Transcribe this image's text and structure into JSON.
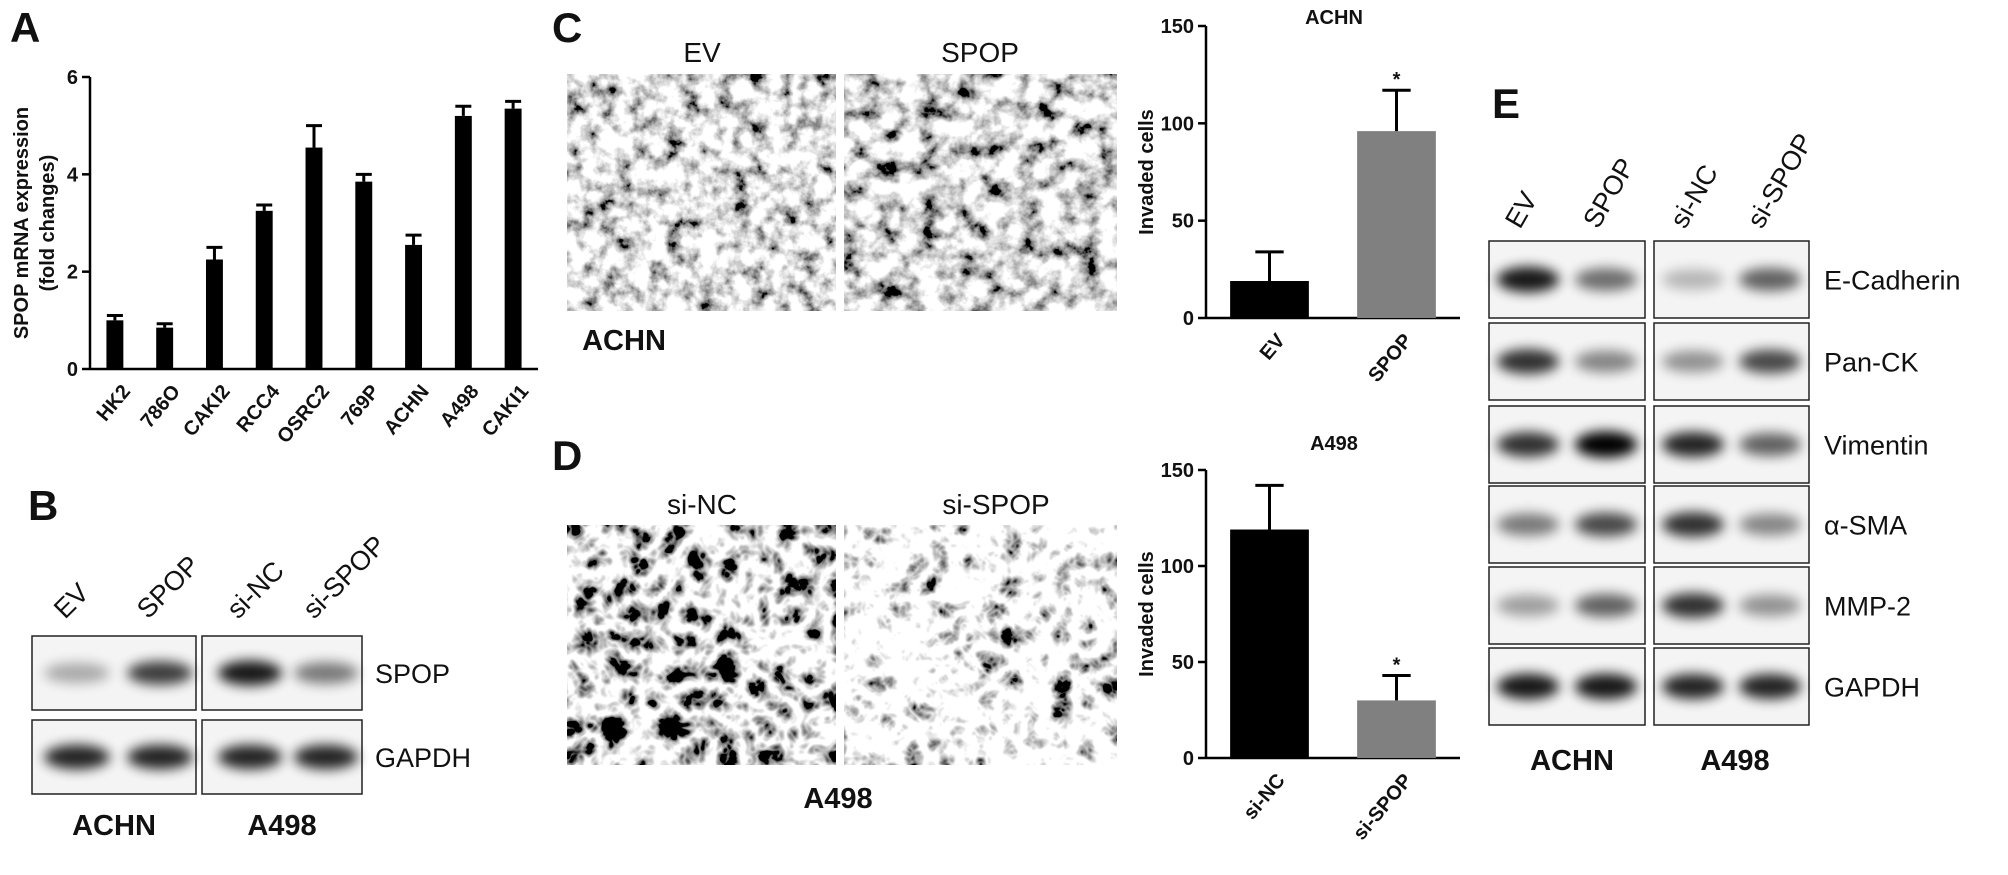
{
  "chart_data": [
    {
      "type": "bar",
      "ylabel": [
        "SPOP mRNA expression",
        "(fold changes)"
      ],
      "categories": [
        "HK2",
        "786O",
        "CAKI2",
        "RCC4",
        "OSRC2",
        "769P",
        "ACHN",
        "A498",
        "CAKI1"
      ],
      "values": [
        1.0,
        0.85,
        2.25,
        3.25,
        4.55,
        3.85,
        2.55,
        5.2,
        5.35
      ],
      "errors": [
        0.1,
        0.08,
        0.25,
        0.12,
        0.45,
        0.15,
        0.2,
        0.2,
        0.15
      ],
      "color": "#000000",
      "ylim": [
        0,
        6
      ],
      "yticks": [
        0,
        2,
        4,
        6
      ]
    },
    {
      "type": "bar",
      "title": "ACHN",
      "ylabel": [
        "Invaded cells"
      ],
      "categories": [
        "EV",
        "SPOP"
      ],
      "values": [
        19,
        96
      ],
      "errors": [
        15,
        21
      ],
      "significance": [
        null,
        "*"
      ],
      "colors": [
        "#000000",
        "#808080"
      ],
      "ylim": [
        0,
        150
      ],
      "yticks": [
        0,
        50,
        100,
        150
      ]
    },
    {
      "type": "bar",
      "title": "A498",
      "ylabel": [
        "Invaded cells"
      ],
      "categories": [
        "si-NC",
        "si-SPOP"
      ],
      "values": [
        119,
        30
      ],
      "errors": [
        23,
        13
      ],
      "significance": [
        null,
        "*"
      ],
      "colors": [
        "#000000",
        "#808080"
      ],
      "ylim": [
        0,
        150
      ],
      "yticks": [
        0,
        50,
        100,
        150
      ]
    }
  ],
  "panel_labels": [
    "A",
    "B",
    "C",
    "D",
    "E"
  ],
  "panel_b": {
    "lanes": [
      "EV",
      "SPOP",
      "si-NC",
      "si-SPOP"
    ],
    "proteins": [
      "SPOP",
      "GAPDH"
    ],
    "cell_lines": [
      "ACHN",
      "A498"
    ]
  },
  "panel_c": {
    "images": [
      "EV",
      "SPOP"
    ],
    "cell_line": "ACHN"
  },
  "panel_d": {
    "images": [
      "si-NC",
      "si-SPOP"
    ],
    "cell_line": "A498"
  },
  "panel_e": {
    "lanes": [
      "EV",
      "SPOP",
      "si-NC",
      "si-SPOP"
    ],
    "proteins": [
      "E-Cadherin",
      "Pan-CK",
      "Vimentin",
      "α-SMA",
      "MMP-2",
      "GAPDH"
    ],
    "cell_lines": [
      "ACHN",
      "A498"
    ]
  }
}
